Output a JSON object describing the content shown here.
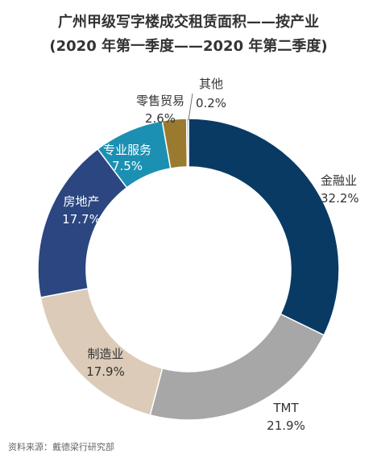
{
  "chart_data": {
    "type": "pie",
    "variant": "donut",
    "title": "广州甲级写字楼成交租赁面积——按产业",
    "subtitle": "(2020 年第一季度——2020 年第二季度)",
    "categories": [
      "金融业",
      "TMT",
      "制造业",
      "房地产",
      "专业服务",
      "零售贸易",
      "其他"
    ],
    "values": [
      32.2,
      21.9,
      17.9,
      17.7,
      7.5,
      2.6,
      0.2
    ],
    "value_labels": [
      "32.2%",
      "21.9%",
      "17.9%",
      "17.7%",
      "7.5%",
      "2.6%",
      "0.2%"
    ],
    "colors": [
      "#083a64",
      "#a7a7a7",
      "#dccbb8",
      "#2b4680",
      "#1c90b3",
      "#9a7a2f",
      "#86a9b1"
    ]
  },
  "source": "资料来源：戴德梁行研究部"
}
